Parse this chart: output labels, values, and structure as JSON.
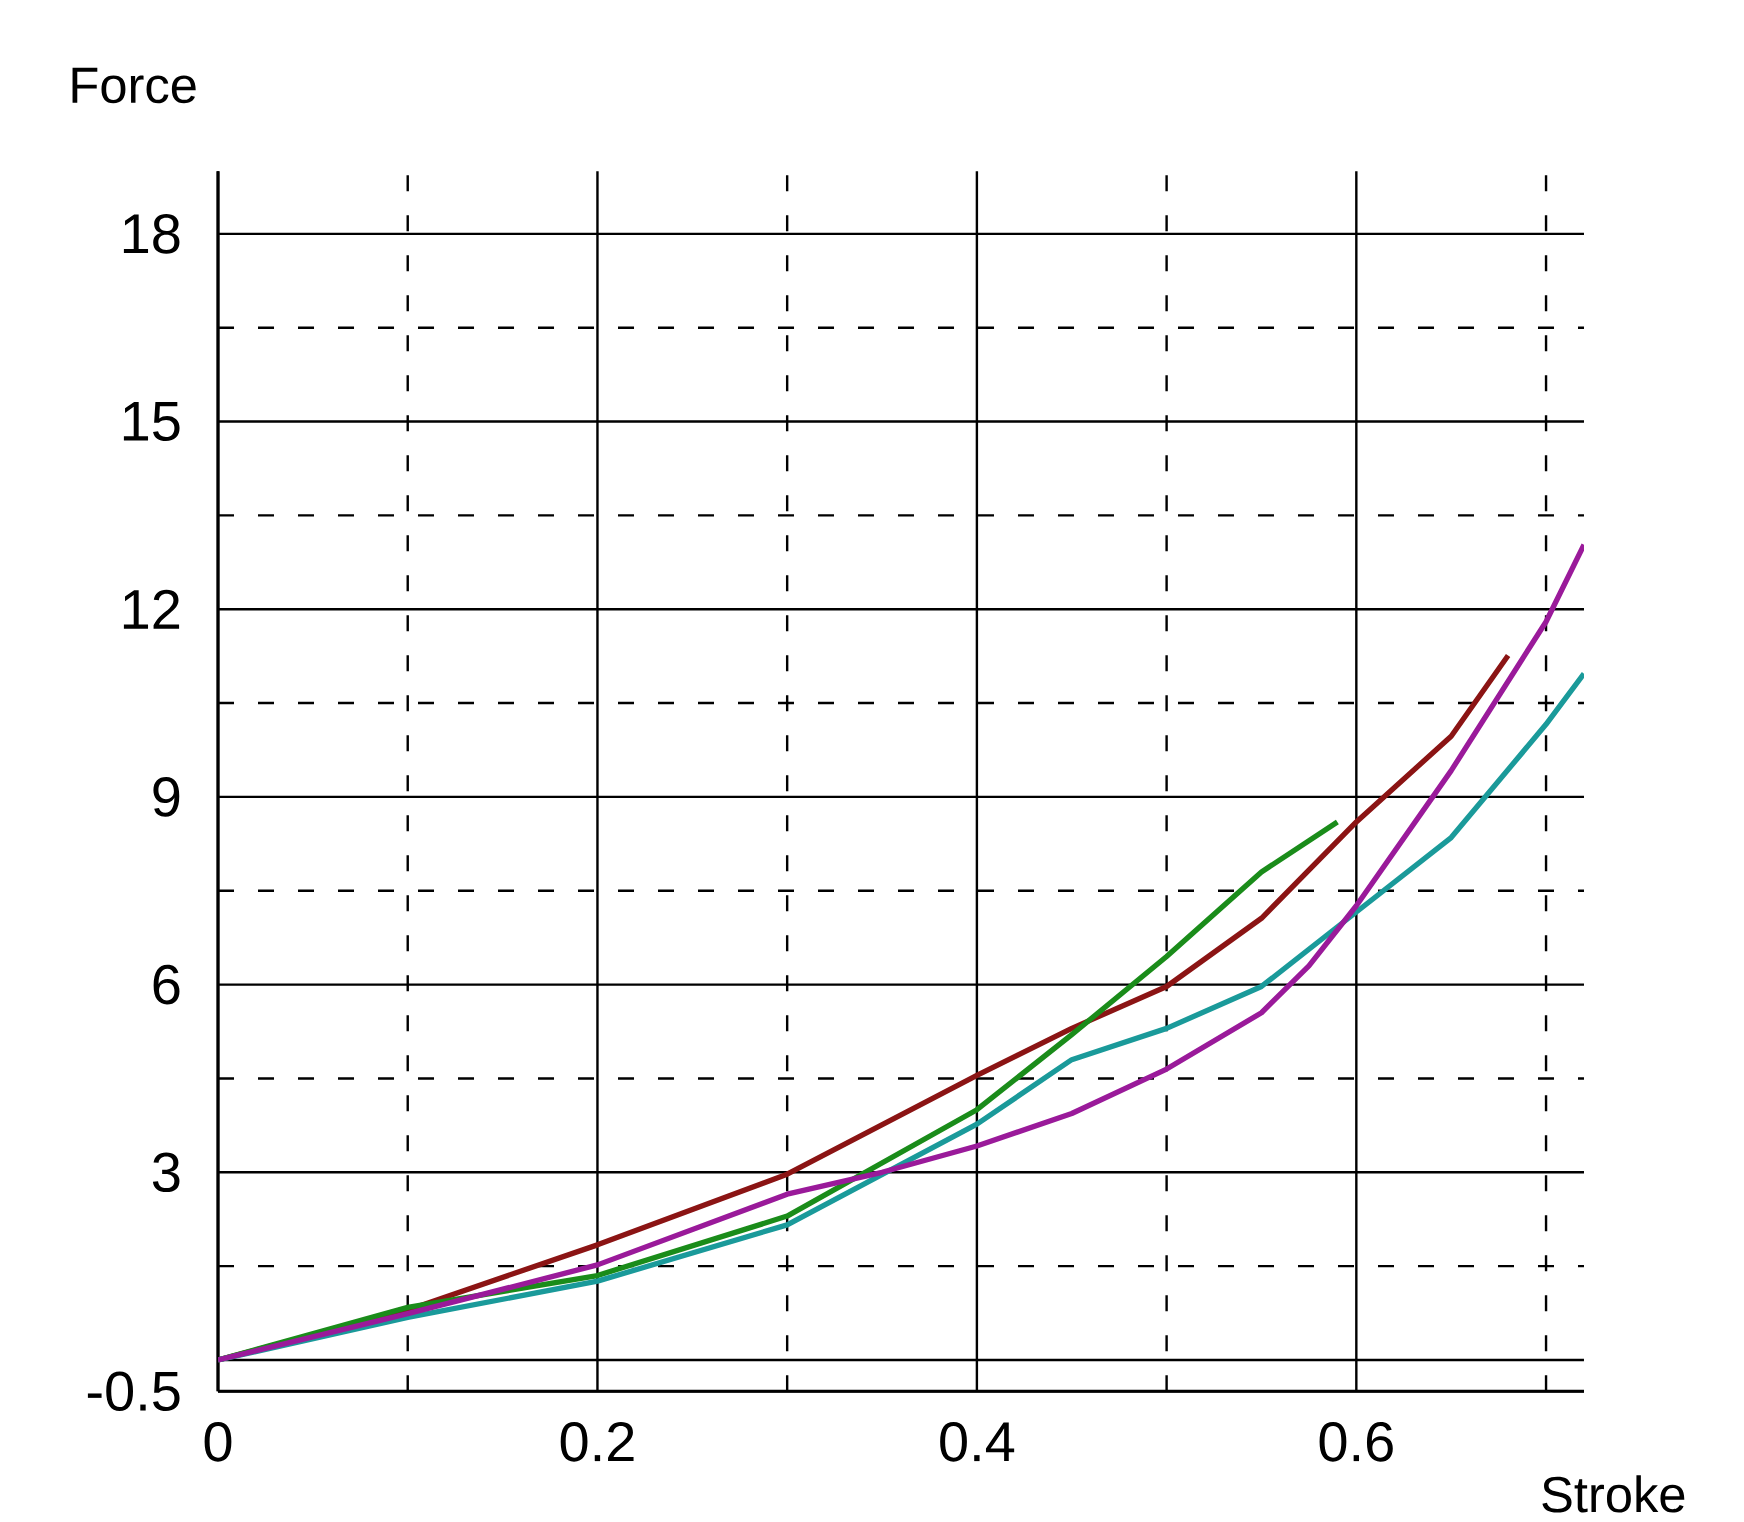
{
  "chart_data": {
    "type": "line",
    "xlabel": "Stroke",
    "ylabel": "Force",
    "xlim": [
      0,
      0.72
    ],
    "ylim": [
      -0.5,
      19
    ],
    "xticks": [
      0,
      0.2,
      0.4,
      0.6,
      {
        "value": 0.1,
        "label": null
      },
      {
        "value": 0.3,
        "label": null
      },
      {
        "value": 0.5,
        "label": null
      },
      {
        "value": 0.7,
        "label": null
      }
    ],
    "yticks": [
      -0.5,
      3,
      6,
      9,
      12,
      15,
      18,
      {
        "value": 1.5,
        "label": null
      },
      {
        "value": 4.5,
        "label": null
      },
      {
        "value": 7.5,
        "label": null
      },
      {
        "value": 10.5,
        "label": null
      },
      {
        "value": 13.5,
        "label": null
      },
      {
        "value": 16.5,
        "label": null
      }
    ],
    "grid": true,
    "marker": "none",
    "line_style": "solid",
    "ref_lines": [
      {
        "axis": "y",
        "value": 0
      }
    ],
    "series": [
      {
        "color": "#8b1414",
        "x": [
          0,
          0.1,
          0.2,
          0.3,
          0.4,
          0.45,
          0.5,
          0.55,
          0.6,
          0.65,
          0.68
        ],
        "values": [
          0,
          0.8,
          1.84,
          2.97,
          4.55,
          5.3,
          5.97,
          7.06,
          8.6,
          9.97,
          11.26
        ]
      },
      {
        "color": "#1a8c1a",
        "x": [
          0,
          0.1,
          0.2,
          0.3,
          0.4,
          0.45,
          0.5,
          0.55,
          0.59
        ],
        "values": [
          0,
          0.84,
          1.35,
          2.3,
          4.0,
          5.2,
          6.45,
          7.8,
          8.6
        ]
      },
      {
        "color": "#1a9a9a",
        "x": [
          0,
          0.1,
          0.2,
          0.3,
          0.4,
          0.45,
          0.5,
          0.55,
          0.6,
          0.65,
          0.7,
          0.72
        ],
        "values": [
          0,
          0.68,
          1.26,
          2.16,
          3.77,
          4.8,
          5.3,
          5.97,
          7.16,
          8.35,
          10.16,
          10.97
        ]
      },
      {
        "color": "#9a1a9a",
        "x": [
          0,
          0.1,
          0.2,
          0.3,
          0.35,
          0.4,
          0.45,
          0.5,
          0.55,
          0.575,
          0.6,
          0.65,
          0.7,
          0.72
        ],
        "values": [
          0,
          0.74,
          1.52,
          2.65,
          3.0,
          3.42,
          3.94,
          4.65,
          5.55,
          6.3,
          7.26,
          9.42,
          11.8,
          13.03
        ]
      }
    ]
  }
}
